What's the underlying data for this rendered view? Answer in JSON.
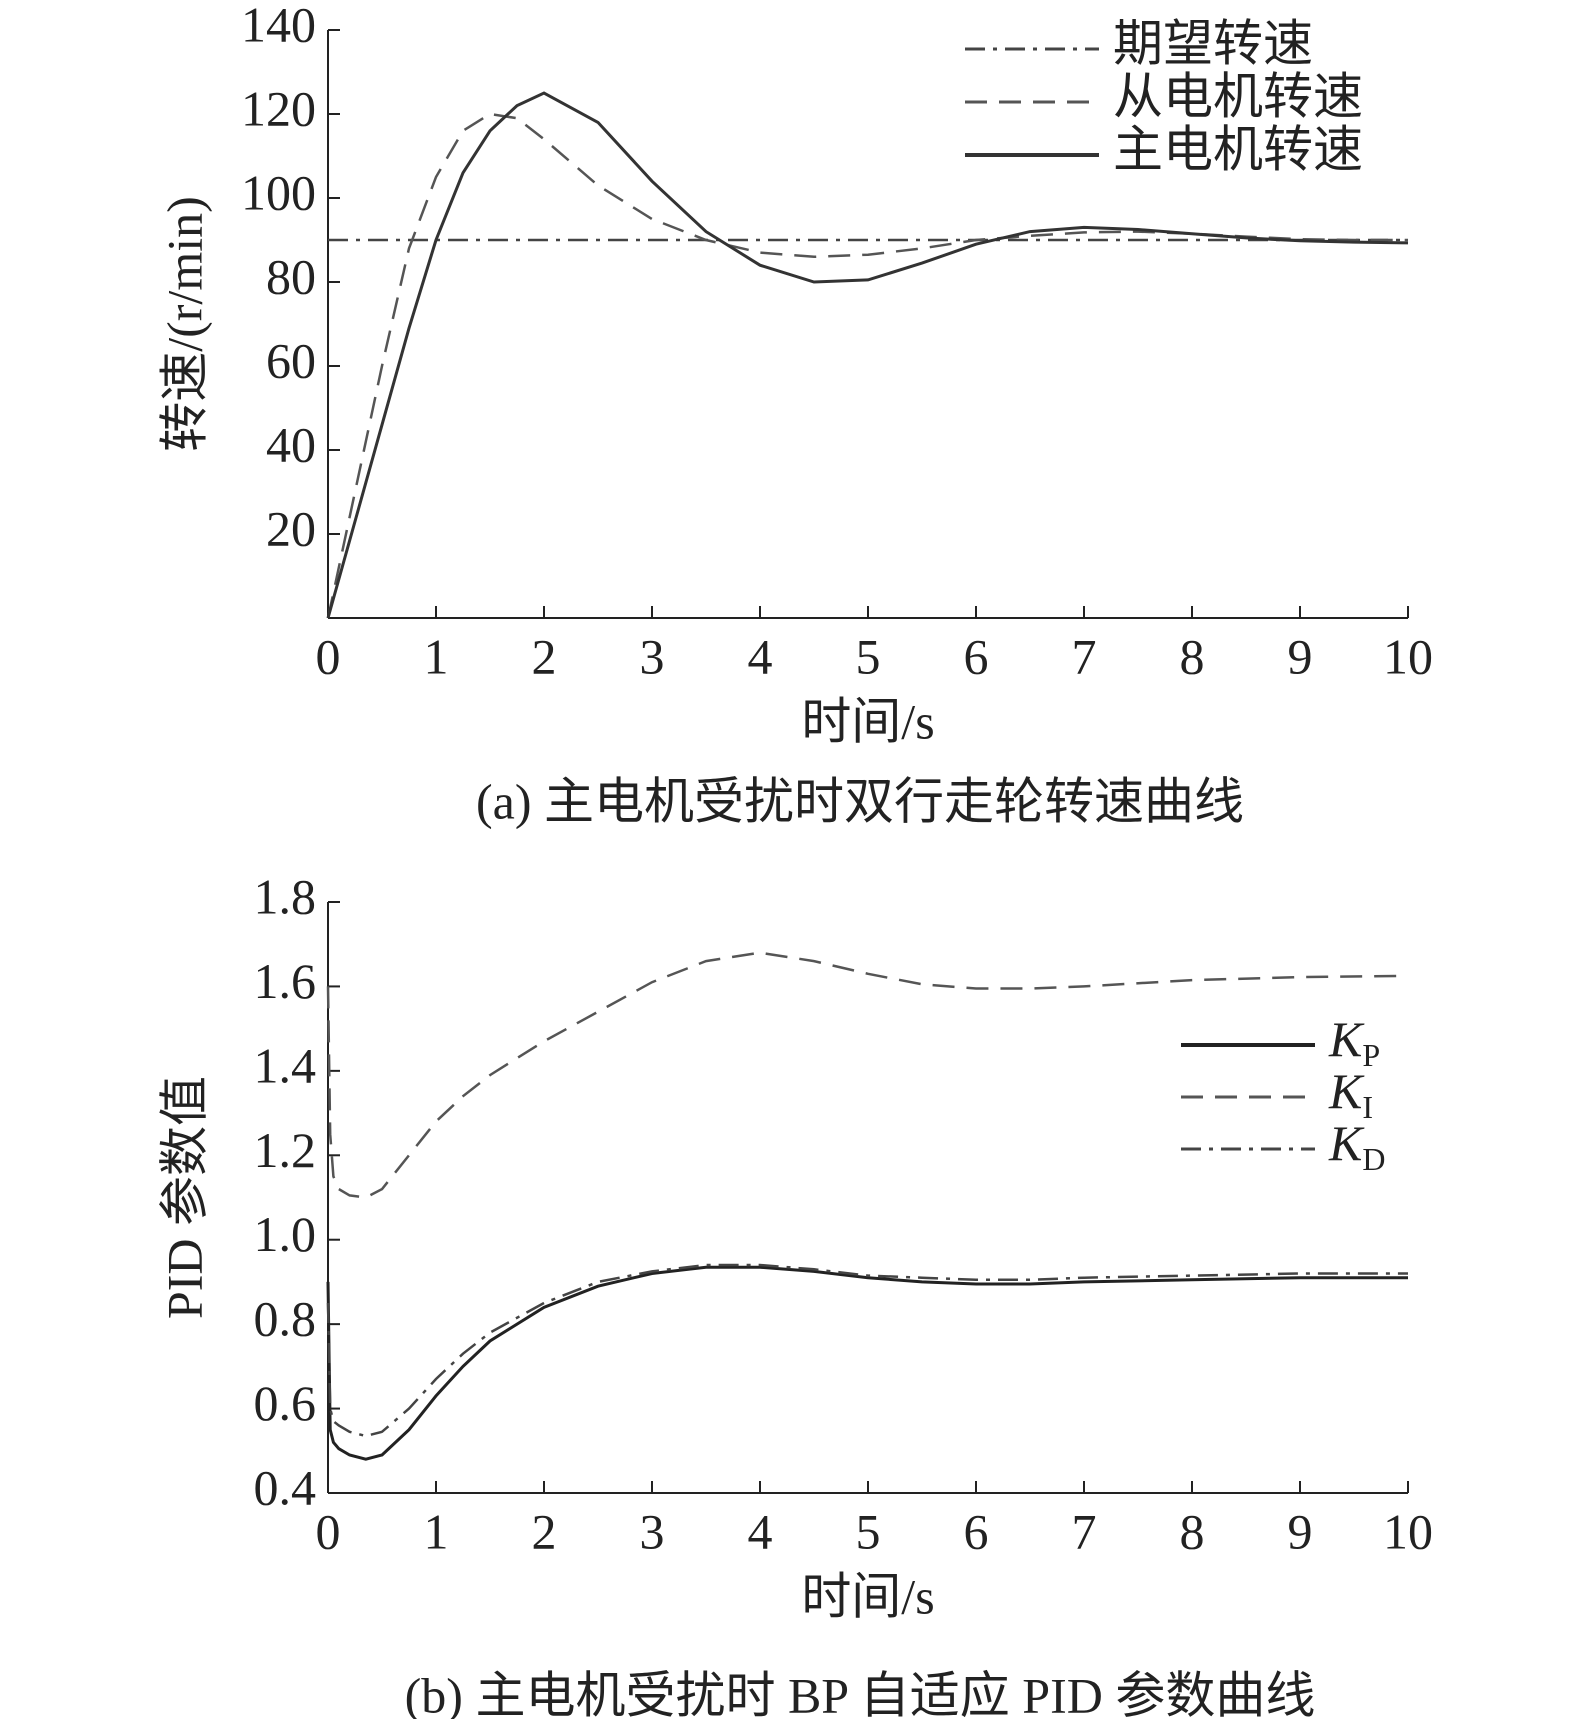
{
  "chart_data": [
    {
      "type": "line",
      "caption": "(a) 主电机受扰时双行走轮转速曲线",
      "xlabel": "时间/s",
      "ylabel": "转速/(r/min)",
      "xlim": [
        0,
        10
      ],
      "xticks": [
        0,
        1,
        2,
        3,
        4,
        5,
        6,
        7,
        8,
        9,
        10
      ],
      "ylim": [
        0,
        140
      ],
      "yticks": [
        20,
        40,
        60,
        80,
        100,
        120,
        140
      ],
      "legend": "upper right",
      "series": [
        {
          "name": "期望转速",
          "color": "#444",
          "linestyle": "dashdot",
          "x": [
            0,
            10
          ],
          "values": [
            90,
            90
          ]
        },
        {
          "name": "从电机转速",
          "color": "#555",
          "linestyle": "dashed",
          "x": [
            0,
            0.25,
            0.5,
            0.75,
            1,
            1.25,
            1.5,
            1.75,
            2,
            2.5,
            3,
            3.5,
            4,
            4.5,
            5,
            5.5,
            6,
            6.5,
            7,
            7.5,
            8,
            8.5,
            9,
            9.5,
            10
          ],
          "values": [
            0,
            30,
            60,
            88,
            105,
            116,
            120,
            119,
            114,
            103,
            95,
            90,
            87,
            86,
            86.5,
            88,
            90,
            91,
            91.8,
            92,
            91.5,
            90.8,
            90.2,
            90,
            90
          ]
        },
        {
          "name": "主电机转速",
          "color": "#333",
          "linestyle": "solid",
          "x": [
            0,
            0.25,
            0.5,
            0.75,
            1,
            1.25,
            1.5,
            1.75,
            2,
            2.5,
            3,
            3.5,
            4,
            4.5,
            5,
            5.5,
            6,
            6.5,
            7,
            7.5,
            8,
            8.5,
            9,
            9.5,
            10
          ],
          "values": [
            0,
            23,
            46,
            69,
            90,
            106,
            116,
            122,
            125,
            118,
            104,
            92,
            84,
            80,
            80.5,
            84.5,
            89,
            92,
            93,
            92.5,
            91.5,
            90.5,
            89.8,
            89.5,
            89.3
          ]
        }
      ]
    },
    {
      "type": "line",
      "caption": "(b) 主电机受扰时 BP 自适应 PID 参数曲线",
      "xlabel": "时间/s",
      "ylabel": "PID 参数值",
      "xlim": [
        0,
        10
      ],
      "xticks": [
        0,
        1,
        2,
        3,
        4,
        5,
        6,
        7,
        8,
        9,
        10
      ],
      "ylim": [
        0.4,
        1.8
      ],
      "yticks": [
        0.4,
        0.6,
        0.8,
        {
          "value": 1,
          "label": "1.0"
        },
        1.2,
        1.4,
        1.6,
        1.8
      ],
      "legend": "center right",
      "series": [
        {
          "name": "KP",
          "color": "#222",
          "linestyle": "solid",
          "x": [
            0,
            0.02,
            0.05,
            0.1,
            0.2,
            0.35,
            0.5,
            0.75,
            1,
            1.25,
            1.5,
            2,
            2.5,
            3,
            3.5,
            4,
            4.5,
            5,
            5.5,
            6,
            6.5,
            7,
            8,
            9,
            10
          ],
          "values": [
            0.9,
            0.55,
            0.52,
            0.505,
            0.49,
            0.48,
            0.49,
            0.55,
            0.63,
            0.7,
            0.76,
            0.84,
            0.89,
            0.92,
            0.935,
            0.935,
            0.925,
            0.91,
            0.9,
            0.895,
            0.895,
            0.9,
            0.905,
            0.91,
            0.91
          ]
        },
        {
          "name": "KI",
          "color": "#555",
          "linestyle": "dashed",
          "x": [
            0,
            0.02,
            0.05,
            0.1,
            0.2,
            0.35,
            0.5,
            0.75,
            1,
            1.25,
            1.5,
            2,
            2.5,
            3,
            3.5,
            4,
            4.5,
            5,
            5.5,
            6,
            6.5,
            7,
            8,
            9,
            10
          ],
          "values": [
            1.6,
            1.25,
            1.15,
            1.12,
            1.105,
            1.1,
            1.12,
            1.2,
            1.28,
            1.34,
            1.39,
            1.47,
            1.54,
            1.61,
            1.66,
            1.68,
            1.66,
            1.63,
            1.605,
            1.595,
            1.595,
            1.6,
            1.615,
            1.622,
            1.625
          ]
        },
        {
          "name": "KD",
          "color": "#444",
          "linestyle": "dashdot",
          "x": [
            0,
            0.02,
            0.05,
            0.1,
            0.2,
            0.35,
            0.5,
            0.75,
            1,
            1.25,
            1.5,
            2,
            2.5,
            3,
            3.5,
            4,
            4.5,
            5,
            5.5,
            6,
            6.5,
            7,
            8,
            9,
            10
          ],
          "values": [
            0.85,
            0.6,
            0.57,
            0.56,
            0.545,
            0.535,
            0.545,
            0.6,
            0.67,
            0.73,
            0.78,
            0.85,
            0.9,
            0.925,
            0.94,
            0.94,
            0.93,
            0.915,
            0.91,
            0.905,
            0.905,
            0.91,
            0.915,
            0.92,
            0.92
          ]
        }
      ]
    }
  ]
}
